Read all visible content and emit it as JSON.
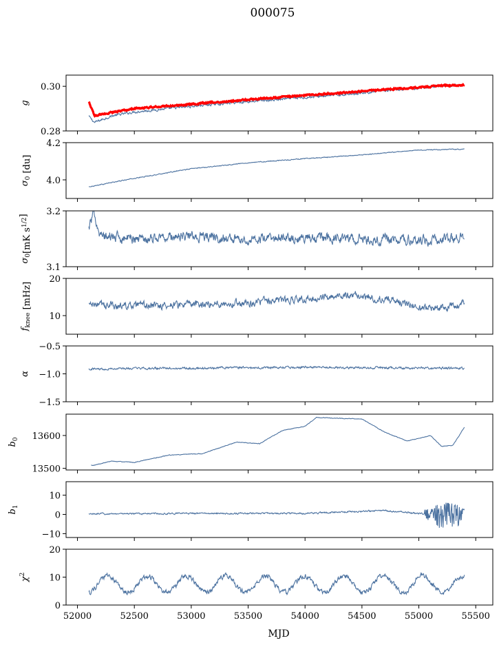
{
  "figure": {
    "title": "000075",
    "xlabel": "MJD"
  },
  "colors": {
    "series": "#4c72a0",
    "fit": "#ff0000",
    "axes": "#000000"
  },
  "chart_data": [
    {
      "type": "line",
      "ylabel": "g",
      "ylim": [
        0.28,
        0.305
      ],
      "yticks": [
        0.28,
        0.3
      ],
      "ytick_labels": [
        "0.28",
        "0.30"
      ],
      "x": [
        52100,
        52150,
        52300,
        52500,
        52800,
        53100,
        53400,
        53700,
        54000,
        54300,
        54600,
        54900,
        55200,
        55400
      ],
      "series": [
        {
          "values": [
            0.2865,
            0.2838,
            0.2867,
            0.2885,
            0.29,
            0.2915,
            0.2928,
            0.2938,
            0.295,
            0.2962,
            0.2975,
            0.2988,
            0.3002,
            0.3004
          ],
          "noise": 0.0006,
          "color": "#4c72a0"
        },
        {
          "values": [
            0.293,
            0.2868,
            0.2883,
            0.29,
            0.2912,
            0.2924,
            0.2936,
            0.2948,
            0.296,
            0.297,
            0.2982,
            0.2992,
            0.3002,
            0.3006
          ],
          "noise": 0.00035,
          "color": "#ff0000",
          "width": 3.2
        }
      ]
    },
    {
      "type": "line",
      "ylabel": "σ0 [du]",
      "ylim": [
        3.9,
        4.2
      ],
      "yticks": [
        4.0,
        4.2
      ],
      "ytick_labels": [
        "4.0",
        "4.2"
      ],
      "x": [
        52100,
        52500,
        53000,
        53500,
        54000,
        54500,
        55000,
        55400
      ],
      "series": [
        {
          "values": [
            3.963,
            4.008,
            4.06,
            4.092,
            4.114,
            4.134,
            4.16,
            4.165
          ],
          "noise": 0.0025,
          "color": "#4c72a0"
        }
      ]
    },
    {
      "type": "line",
      "ylabel": "σ0[mK s^1/2]",
      "ylim": [
        3.1,
        3.2
      ],
      "yticks": [
        3.1,
        3.2
      ],
      "ytick_labels": [
        "3.1",
        "3.2"
      ],
      "x": [
        52100,
        52150,
        52200,
        52500,
        53000,
        53500,
        54000,
        54500,
        55000,
        55400
      ],
      "series": [
        {
          "values": [
            3.17,
            3.197,
            3.155,
            3.15,
            3.155,
            3.148,
            3.152,
            3.149,
            3.148,
            3.15
          ],
          "noise": 0.01,
          "color": "#4c72a0"
        }
      ]
    },
    {
      "type": "line",
      "ylabel": "f_knee [mHz]",
      "ylim": [
        5,
        20
      ],
      "yticks": [
        10,
        20
      ],
      "ytick_labels": [
        "10",
        "20"
      ],
      "x": [
        52100,
        52500,
        53000,
        53500,
        54000,
        54400,
        54800,
        55000,
        55200,
        55400
      ],
      "series": [
        {
          "values": [
            13.0,
            12.5,
            13.0,
            13.5,
            14.5,
            15.5,
            14.0,
            12.0,
            12.0,
            13.5
          ],
          "noise": 1.1,
          "color": "#4c72a0"
        }
      ]
    },
    {
      "type": "line",
      "ylabel": "α",
      "ylim": [
        -1.5,
        -0.5
      ],
      "yticks": [
        -1.5,
        -1.0,
        -0.5
      ],
      "ytick_labels": [
        "−1.5",
        "−1.0",
        "−0.5"
      ],
      "x": [
        52100,
        53000,
        54000,
        55000,
        55400
      ],
      "series": [
        {
          "values": [
            -0.91,
            -0.9,
            -0.88,
            -0.9,
            -0.9
          ],
          "noise": 0.022,
          "color": "#4c72a0"
        }
      ]
    },
    {
      "type": "line",
      "ylabel": "b0",
      "ylim": [
        13495,
        13665
      ],
      "yticks": [
        13500,
        13600
      ],
      "ytick_labels": [
        "13500",
        "13600"
      ],
      "x": [
        52120,
        52130,
        52300,
        52500,
        52800,
        53100,
        53400,
        53600,
        53800,
        54000,
        54100,
        54500,
        54700,
        54900,
        55100,
        55200,
        55300,
        55400
      ],
      "series": [
        {
          "values": [
            13510,
            13508,
            13522,
            13518,
            13540,
            13545,
            13580,
            13575,
            13615,
            13628,
            13655,
            13650,
            13610,
            13583,
            13600,
            13567,
            13570,
            13625
          ],
          "noise": 1.0,
          "color": "#4c72a0"
        }
      ]
    },
    {
      "type": "line",
      "ylabel": "b1",
      "ylim": [
        -12,
        17
      ],
      "yticks": [
        -10,
        0,
        10
      ],
      "ytick_labels": [
        "−10",
        "0",
        "10"
      ],
      "x": [
        52100,
        53000,
        54000,
        54700,
        55000,
        55400
      ],
      "series": [
        {
          "values": [
            0.3,
            0.5,
            0.5,
            2.0,
            0.5,
            0.0
          ],
          "noise": 0.45,
          "color": "#4c72a0"
        }
      ]
    },
    {
      "type": "line",
      "ylabel": "χ²",
      "ylim": [
        0,
        20
      ],
      "yticks": [
        0,
        10,
        20
      ],
      "ytick_labels": [
        "0",
        "10",
        "20"
      ],
      "x": [
        52100,
        55400
      ],
      "series": [
        {
          "values": [
            7.5,
            7.5
          ],
          "noise": 1.0,
          "color": "#4c72a0"
        }
      ]
    }
  ],
  "xaxis": {
    "range": [
      51900,
      55650
    ],
    "ticks": [
      52000,
      52500,
      53000,
      53500,
      54000,
      54500,
      55000,
      55500
    ],
    "tick_labels": [
      "52000",
      "52500",
      "53000",
      "53500",
      "54000",
      "54500",
      "55000",
      "55500"
    ]
  }
}
